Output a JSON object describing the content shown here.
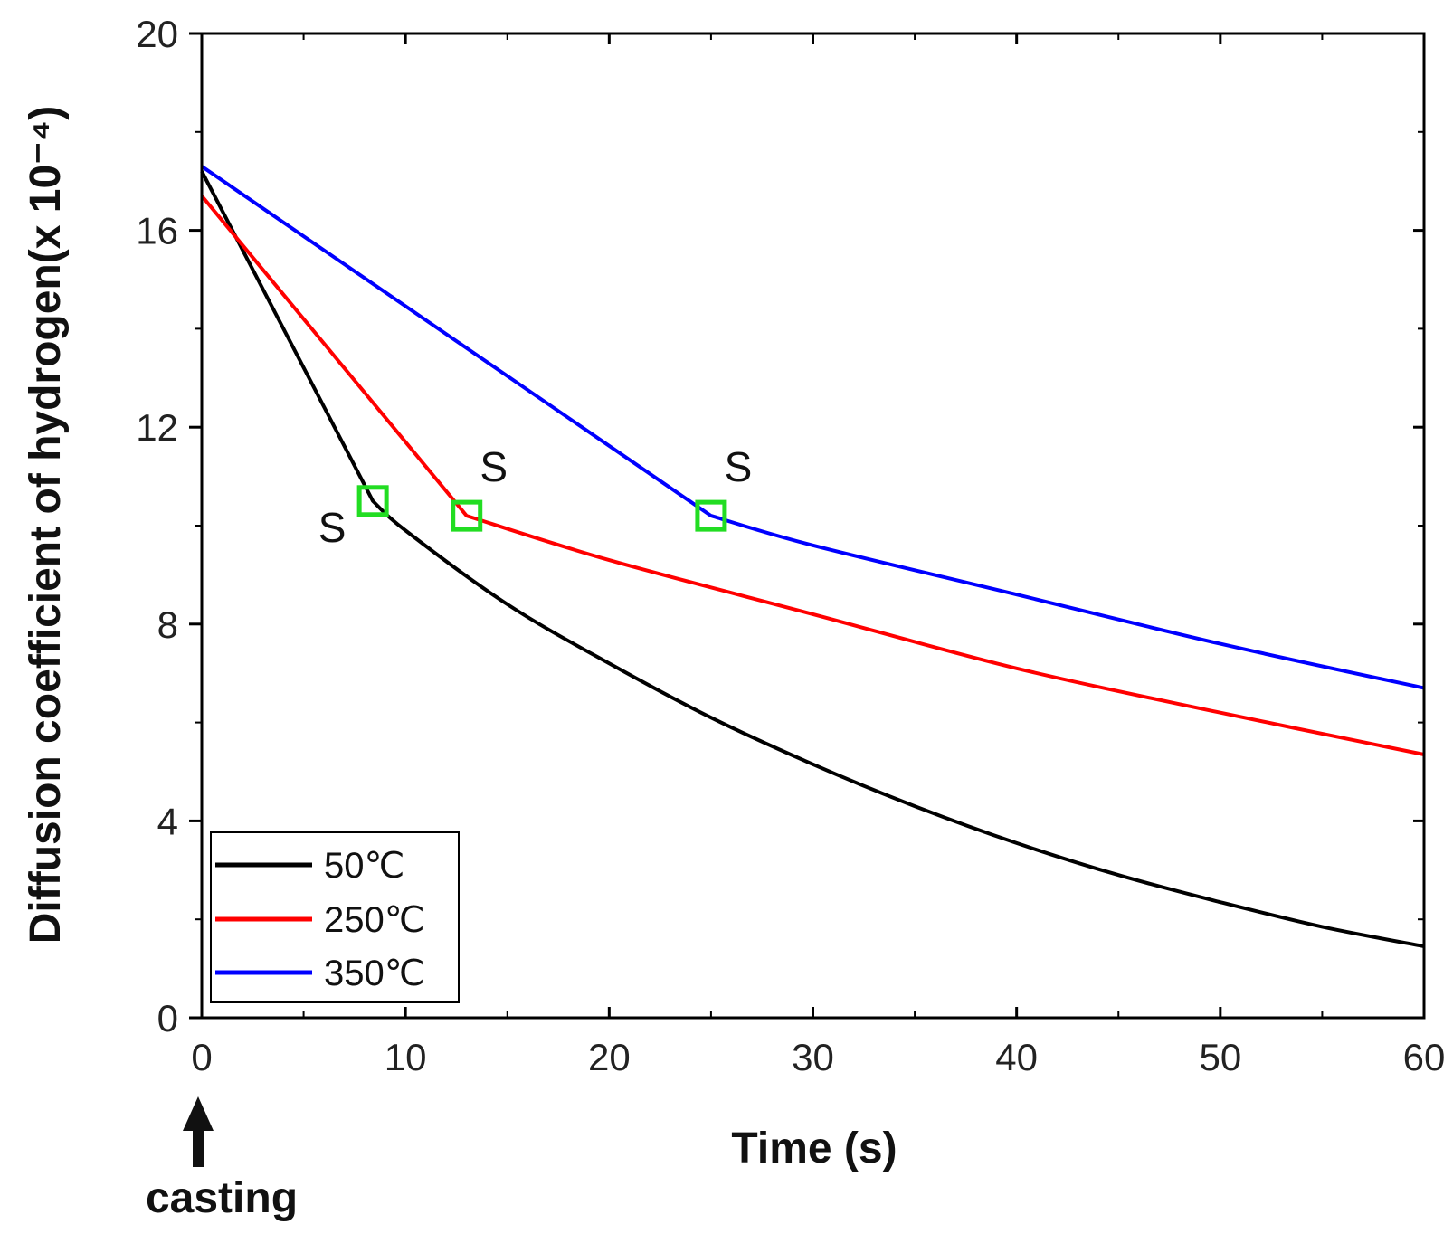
{
  "chart_data": {
    "type": "line",
    "title": "",
    "xlabel": "Time (s)",
    "ylabel": "Diffusion coefficient of hydrogen(x 10⁻⁴)",
    "xlim": [
      0,
      60
    ],
    "ylim": [
      0,
      20
    ],
    "xticks": [
      0,
      10,
      20,
      30,
      40,
      50,
      60
    ],
    "yticks": [
      0,
      4,
      8,
      12,
      16,
      20
    ],
    "x_tick_labels": [
      "0",
      "10",
      "20",
      "30",
      "40",
      "50",
      "60"
    ],
    "y_tick_labels": [
      "0",
      "4",
      "8",
      "12",
      "16",
      "20"
    ],
    "legend_position": "bottom-left",
    "series": [
      {
        "name": "50℃",
        "color": "#000000",
        "x": [
          0,
          8.4,
          10,
          15,
          20,
          25,
          30,
          35,
          40,
          45,
          50,
          55,
          60
        ],
        "y": [
          17.2,
          10.5,
          9.9,
          8.4,
          7.2,
          6.1,
          5.15,
          4.3,
          3.55,
          2.9,
          2.35,
          1.85,
          1.45
        ]
      },
      {
        "name": "250℃",
        "color": "#ff0000",
        "x": [
          0,
          13,
          20,
          30,
          40,
          50,
          60
        ],
        "y": [
          16.7,
          10.2,
          9.3,
          8.2,
          7.1,
          6.2,
          5.35
        ]
      },
      {
        "name": "350℃",
        "color": "#0000ff",
        "x": [
          0,
          25,
          30,
          40,
          50,
          60
        ],
        "y": [
          17.3,
          10.2,
          9.6,
          8.6,
          7.6,
          6.7
        ]
      }
    ],
    "annotations": [
      {
        "text": "S",
        "x": 8.4,
        "y": 10.5,
        "side": "left-below"
      },
      {
        "text": "S",
        "x": 13,
        "y": 10.2,
        "side": "above-right"
      },
      {
        "text": "S",
        "x": 25,
        "y": 10.2,
        "side": "above-right"
      }
    ],
    "marker_color": "#22dd22",
    "casting_label": "casting"
  }
}
